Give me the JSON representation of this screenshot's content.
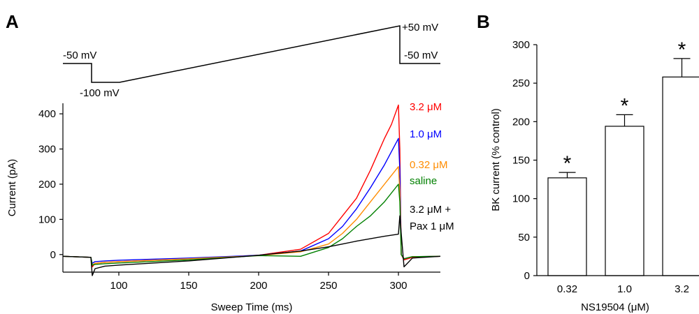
{
  "panel_a": {
    "label": "A",
    "protocol": {
      "hold_start_label": "-50 mV",
      "step_label": "-100 mV",
      "peak_label": "+50 mV",
      "hold_end_label": "-50 mV",
      "voltages": [
        -50,
        -100,
        -100,
        50,
        -50
      ]
    },
    "legend": [
      {
        "text": "3.2 μM",
        "color": "#ff0000"
      },
      {
        "text": "1.0 μM",
        "color": "#0000ff"
      },
      {
        "text": "0.32 μM",
        "color": "#ff8c00"
      },
      {
        "text": "saline",
        "color": "#008000"
      },
      {
        "text": "3.2 μM +",
        "color": "#000000"
      },
      {
        "text": "Pax 1 μM",
        "color": "#000000"
      }
    ]
  },
  "panel_b": {
    "label": "B",
    "significance_marker": "*"
  },
  "chart_data": [
    {
      "type": "line",
      "xlabel": "Sweep Time (ms)",
      "ylabel": "Current (pA)",
      "xlim": [
        60,
        330
      ],
      "ylim": [
        -50,
        430
      ],
      "x_ticks": [
        100,
        150,
        200,
        250,
        300
      ],
      "y_ticks": [
        0,
        100,
        200,
        300,
        400
      ],
      "grid": false,
      "legend_position": "right",
      "series": [
        {
          "name": "3.2 μM",
          "color": "#ff0000",
          "x": [
            60,
            80,
            81,
            83,
            90,
            100,
            150,
            200,
            230,
            250,
            260,
            270,
            280,
            290,
            295,
            300,
            301,
            302,
            304,
            310,
            330
          ],
          "y": [
            -5,
            -8,
            -35,
            -25,
            -22,
            -20,
            -12,
            -2,
            15,
            60,
            110,
            160,
            240,
            330,
            370,
            425,
            300,
            0,
            -15,
            -8,
            -5
          ]
        },
        {
          "name": "1.0 μM",
          "color": "#0000ff",
          "x": [
            60,
            80,
            81,
            83,
            90,
            100,
            150,
            200,
            230,
            250,
            260,
            270,
            280,
            290,
            300,
            301,
            302,
            304,
            310,
            330
          ],
          "y": [
            -5,
            -8,
            -25,
            -20,
            -18,
            -16,
            -10,
            -2,
            10,
            45,
            80,
            130,
            190,
            255,
            330,
            240,
            0,
            -12,
            -6,
            -5
          ]
        },
        {
          "name": "0.32 μM",
          "color": "#ff8c00",
          "x": [
            60,
            80,
            81,
            83,
            90,
            100,
            150,
            200,
            230,
            250,
            260,
            270,
            280,
            290,
            300,
            301,
            302,
            304,
            310,
            330
          ],
          "y": [
            -5,
            -8,
            -30,
            -25,
            -22,
            -20,
            -12,
            -3,
            8,
            30,
            60,
            100,
            150,
            200,
            250,
            180,
            0,
            -12,
            -6,
            -5
          ]
        },
        {
          "name": "saline",
          "color": "#008000",
          "x": [
            60,
            80,
            81,
            83,
            90,
            100,
            150,
            200,
            230,
            250,
            260,
            270,
            280,
            290,
            300,
            301,
            302,
            304,
            310,
            330
          ],
          "y": [
            -5,
            -8,
            -30,
            -28,
            -26,
            -24,
            -15,
            -3,
            -5,
            20,
            45,
            80,
            110,
            150,
            200,
            150,
            0,
            -12,
            -6,
            -5
          ]
        },
        {
          "name": "3.2 μM + Pax 1 μM",
          "color": "#000000",
          "x": [
            60,
            80,
            81,
            83,
            90,
            100,
            150,
            200,
            230,
            250,
            260,
            270,
            280,
            290,
            300,
            301,
            302,
            304,
            310,
            330
          ],
          "y": [
            -5,
            -8,
            -60,
            -40,
            -33,
            -30,
            -18,
            -2,
            10,
            22,
            30,
            38,
            45,
            52,
            58,
            110,
            60,
            -35,
            -10,
            -5
          ]
        }
      ]
    },
    {
      "type": "bar",
      "xlabel": "NS19504 (μM)",
      "ylabel": "BK current (% control)",
      "categories": [
        "0.32",
        "1.0",
        "3.2"
      ],
      "values": [
        127,
        194,
        258
      ],
      "errors": [
        7,
        15,
        24
      ],
      "ylim": [
        0,
        300
      ],
      "y_ticks": [
        0,
        50,
        100,
        150,
        200,
        250,
        300
      ],
      "grid": false,
      "annotations": [
        "*",
        "*",
        "*"
      ]
    }
  ]
}
